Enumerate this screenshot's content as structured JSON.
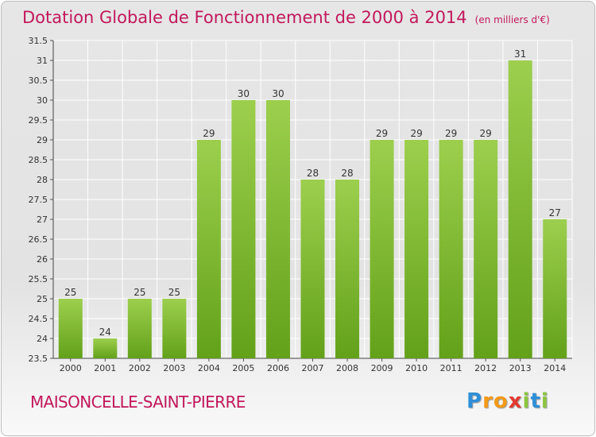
{
  "header": {
    "title": "Dotation Globale de Fonctionnement de 2000 à 2014",
    "subtitle": "(en milliers d'€)"
  },
  "footer": {
    "commune": "MAISONCELLE-SAINT-PIERRE",
    "logo": "Proxiti"
  },
  "chart_data": {
    "type": "bar",
    "title": "Dotation Globale de Fonctionnement de 2000 à 2014",
    "subtitle": "(en milliers d'€)",
    "xlabel": "",
    "ylabel": "",
    "categories": [
      "2000",
      "2001",
      "2002",
      "2003",
      "2004",
      "2005",
      "2006",
      "2007",
      "2008",
      "2009",
      "2010",
      "2011",
      "2012",
      "2013",
      "2014"
    ],
    "values": [
      25,
      24,
      25,
      25,
      29,
      30,
      30,
      28,
      28,
      29,
      29,
      29,
      29,
      31,
      27
    ],
    "ylim": [
      23.5,
      31.5
    ],
    "yticks": [
      "23.5",
      "24",
      "24.5",
      "25",
      "25.5",
      "26",
      "26.5",
      "27",
      "27.5",
      "28",
      "28.5",
      "29",
      "29.5",
      "30",
      "30.5",
      "31",
      "31.5"
    ],
    "grid": true,
    "legend": "none",
    "colors": {
      "bar_top": "#9ccf4d",
      "bar_bottom": "#63a11a",
      "title": "#c2185b"
    }
  }
}
